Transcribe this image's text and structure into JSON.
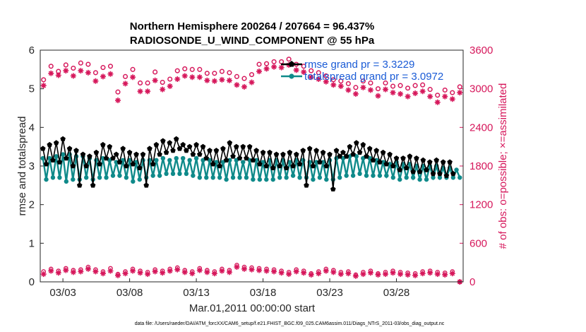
{
  "chart_data": {
    "type": "line",
    "title_line1": "Northern Hemisphere 200264 / 207664 = 96.437%",
    "title_line2": "RADIOSONDE_U_WIND_COMPONENT @ 55 hPa",
    "xlabel": "Mar.01,2011 00:00:00 start",
    "ylabel_left": "rmse and totalspread",
    "ylabel_right": "# of obs: o=possible; ×=assimilated",
    "footnote": "data file: /Users/raeder/DAI/ATM_forcXX/CAM6_setup/f.e21.FHIST_BGC.f09_025.CAM6assim.011/Diags_NTrS_2011-03/obs_diag_output.nc",
    "xlim": [
      1.3,
      33.0
    ],
    "ylim_left": [
      0,
      6
    ],
    "ylim_right": [
      0,
      3600
    ],
    "x_ticks": [
      {
        "value": 3,
        "label": "03/03"
      },
      {
        "value": 8,
        "label": "03/08"
      },
      {
        "value": 13,
        "label": "03/13"
      },
      {
        "value": 18,
        "label": "03/18"
      },
      {
        "value": 23,
        "label": "03/23"
      },
      {
        "value": 28,
        "label": "03/28"
      }
    ],
    "y_ticks_left": [
      "0",
      "1",
      "2",
      "3",
      "4",
      "5",
      "6"
    ],
    "y_ticks_right": [
      "0",
      "600",
      "1200",
      "1800",
      "2400",
      "3000",
      "3600"
    ],
    "legend": [
      {
        "label": "rmse grand pr = 3.3229"
      },
      {
        "label": "totalspread grand pr = 3.0972"
      }
    ],
    "colors": {
      "rmse": "#000000",
      "spread": "#0f8a8a",
      "obs": "#d6175b"
    },
    "x_start": 1.5,
    "x_step": 0.25,
    "series": [
      {
        "name": "rmse",
        "values": [
          3.45,
          3.05,
          3.55,
          3.15,
          3.6,
          3.1,
          3.7,
          3.2,
          3.45,
          3.0,
          3.4,
          2.5,
          3.3,
          3.0,
          3.25,
          2.5,
          3.35,
          3.05,
          3.55,
          3.2,
          3.5,
          3.2,
          3.3,
          3.1,
          3.45,
          3.0,
          3.35,
          3.05,
          3.3,
          2.95,
          3.3,
          2.5,
          3.45,
          3.05,
          3.55,
          3.3,
          3.65,
          3.35,
          3.6,
          3.4,
          3.7,
          3.45,
          3.55,
          3.4,
          3.5,
          3.3,
          3.55,
          3.3,
          3.5,
          3.2,
          3.4,
          3.05,
          3.4,
          3.0,
          3.45,
          3.15,
          3.6,
          3.25,
          3.5,
          3.2,
          3.5,
          3.2,
          3.5,
          3.15,
          3.4,
          3.05,
          3.35,
          3.0,
          3.35,
          2.95,
          3.3,
          3.0,
          3.3,
          2.95,
          3.35,
          3.0,
          3.3,
          3.05,
          3.4,
          2.5,
          3.45,
          3.0,
          3.4,
          3.1,
          3.35,
          3.0,
          3.3,
          2.4,
          3.4,
          3.25,
          3.35,
          3.25,
          3.5,
          3.3,
          3.6,
          3.35,
          3.55,
          3.25,
          3.45,
          3.15,
          3.4,
          3.1,
          3.35,
          3.05,
          3.3,
          3.0,
          3.2,
          2.9,
          3.2,
          2.95,
          3.25,
          2.85,
          3.2,
          2.85,
          3.15,
          2.9,
          3.1,
          2.8,
          3.15,
          2.8,
          3.1,
          2.75,
          3.1,
          2.8
        ]
      },
      {
        "name": "totalspread",
        "values": [
          3.2,
          2.65,
          3.2,
          2.7,
          3.25,
          2.7,
          3.3,
          2.6,
          3.3,
          2.65,
          3.25,
          2.65,
          3.25,
          2.7,
          3.2,
          2.65,
          3.15,
          2.7,
          3.2,
          2.7,
          3.15,
          2.75,
          3.1,
          2.75,
          3.15,
          2.7,
          3.15,
          2.6,
          3.1,
          2.65,
          3.15,
          2.7,
          3.15,
          2.75,
          3.15,
          2.75,
          3.2,
          2.8,
          3.15,
          2.8,
          3.2,
          2.8,
          3.2,
          2.8,
          3.15,
          2.75,
          3.2,
          2.7,
          3.15,
          2.7,
          3.15,
          2.7,
          3.1,
          2.7,
          3.1,
          2.65,
          3.15,
          2.7,
          3.15,
          2.7,
          3.1,
          2.7,
          3.15,
          2.65,
          3.15,
          2.65,
          3.1,
          2.65,
          3.15,
          2.65,
          3.15,
          2.7,
          3.15,
          2.7,
          3.1,
          2.75,
          3.15,
          2.7,
          3.15,
          2.7,
          3.1,
          2.65,
          3.1,
          2.7,
          3.1,
          2.65,
          3.15,
          2.65,
          3.2,
          2.7,
          3.2,
          2.75,
          3.25,
          2.75,
          3.25,
          2.8,
          3.2,
          2.75,
          3.2,
          2.75,
          3.15,
          2.75,
          3.1,
          2.75,
          3.05,
          2.7,
          3.1,
          2.65,
          3.05,
          2.7,
          3.05,
          2.7,
          3.0,
          2.65,
          3.0,
          2.65,
          3.0,
          2.7,
          3.0,
          2.7,
          2.95,
          2.7,
          2.95,
          2.7,
          2.9,
          2.7
        ]
      }
    ],
    "obs_possible": [
      3140,
      3350,
      3270,
      3370,
      3320,
      3400,
      3380,
      3250,
      3330,
      3350,
      2950,
      3190,
      3300,
      3090,
      3090,
      3260,
      3100,
      3150,
      3280,
      3310,
      3300,
      3300,
      3240,
      3240,
      3270,
      3250,
      3190,
      3160,
      3220,
      3380,
      3390,
      3420,
      3420,
      3460,
      3380,
      3350,
      3280,
      3250,
      3200,
      3140,
      3120,
      3080,
      3020,
      3120,
      3090,
      3000,
      3090,
      3040,
      3050,
      3010,
      3050,
      3060,
      2990,
      2900,
      2980,
      2940,
      3030
    ],
    "obs_assimilated": [
      3050,
      3240,
      3210,
      3280,
      3200,
      3280,
      3250,
      3120,
      3190,
      3230,
      2820,
      3080,
      3180,
      2960,
      2960,
      3130,
      2990,
      3040,
      3150,
      3200,
      3180,
      3180,
      3130,
      3120,
      3140,
      3130,
      3060,
      3030,
      3100,
      3270,
      3310,
      3340,
      3330,
      3370,
      3290,
      3260,
      3180,
      3150,
      3110,
      3060,
      3040,
      2980,
      2920,
      3020,
      2980,
      2890,
      2990,
      2940,
      2920,
      2880,
      2930,
      2960,
      2880,
      2790,
      2880,
      2840,
      2940
    ],
    "obs_bottom_possible": [
      160,
      200,
      170,
      210,
      180,
      190,
      230,
      190,
      160,
      210,
      120,
      160,
      200,
      170,
      150,
      190,
      170,
      200,
      220,
      180,
      160,
      210,
      180,
      160,
      200,
      180,
      260,
      230,
      220,
      210,
      200,
      190,
      170,
      150,
      190,
      170,
      130,
      160,
      200,
      180,
      150,
      160,
      110,
      150,
      170,
      130,
      150,
      170,
      150,
      140,
      130,
      160,
      170,
      150,
      140,
      160,
      0
    ],
    "obs_bottom_assimilated": [
      120,
      170,
      140,
      180,
      150,
      160,
      200,
      160,
      130,
      170,
      100,
      130,
      170,
      140,
      120,
      160,
      140,
      170,
      190,
      150,
      130,
      180,
      150,
      130,
      170,
      150,
      230,
      200,
      190,
      180,
      170,
      160,
      140,
      120,
      160,
      140,
      110,
      130,
      170,
      150,
      120,
      130,
      90,
      120,
      140,
      110,
      120,
      140,
      120,
      110,
      100,
      130,
      140,
      120,
      110,
      130,
      0
    ]
  }
}
